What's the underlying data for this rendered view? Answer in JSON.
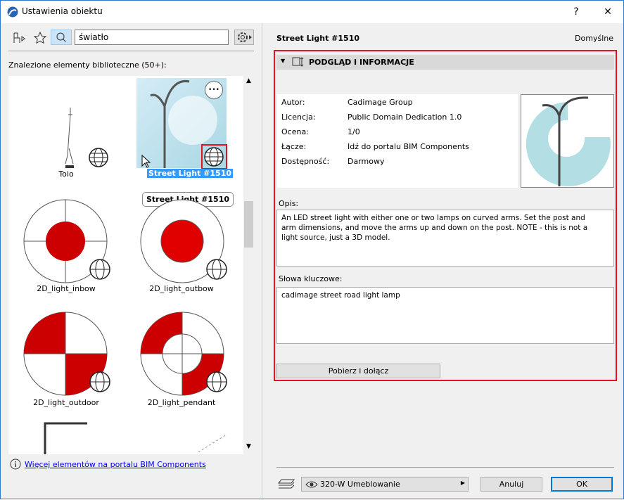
{
  "window": {
    "title": "Ustawienia obiektu",
    "help": "?",
    "close": "✕"
  },
  "left": {
    "search_value": "światło",
    "results_label": "Znalezione elementy biblioteczne (50+):",
    "items": [
      {
        "label": "Toio"
      },
      {
        "label": "Street Light #1510",
        "selected": true
      },
      {
        "label": "2D_light_inbow"
      },
      {
        "label": "2D_light_outbow"
      },
      {
        "label": "2D_light_outdoor"
      },
      {
        "label": "2D_light_pendant"
      }
    ],
    "tooltip": "Street Light #1510",
    "more_button": "•••",
    "more_link": "Więcej elementów na portalu BIM Components"
  },
  "right": {
    "object_name": "Street Light #1510",
    "defaults_label": "Domyślne",
    "section_title": "PODGLĄD I INFORMACJE",
    "info": [
      {
        "key": "Autor:",
        "value": "Cadimage Group"
      },
      {
        "key": "Licencja:",
        "value": "Public Domain Dedication 1.0"
      },
      {
        "key": "Ocena:",
        "value": "1/0"
      },
      {
        "key": "Łącze:",
        "value": "Idź do portalu BIM Components"
      },
      {
        "key": "Dostępność:",
        "value": "Darmowy"
      }
    ],
    "description_label": "Opis:",
    "description": "An LED street light with either one or two lamps on curved arms. Set the post and arm dimensions, and move the arms up and down on the post. NOTE - this is not a light source, just a 3D model.",
    "keywords_label": "Słowa kluczowe:",
    "keywords": "cadimage street road light lamp",
    "download_button": "Pobierz i dołącz"
  },
  "footer": {
    "layer": "320-W Umeblowanie",
    "cancel": "Anuluj",
    "ok": "OK"
  },
  "colors": {
    "accent": "#0078d7",
    "highlight": "#e81123",
    "symbol_red": "#cc0000",
    "selection": "#3399ff"
  }
}
